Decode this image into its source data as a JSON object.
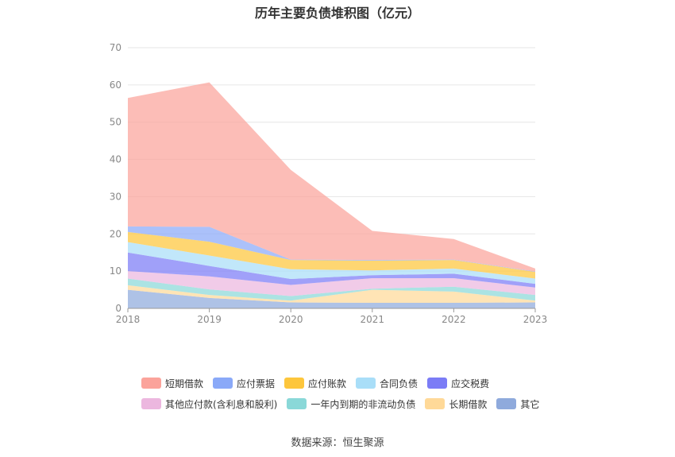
{
  "chart_data": {
    "type": "area",
    "stacked": true,
    "title": "历年主要负债堆积图（亿元）",
    "categories": [
      "2018",
      "2019",
      "2020",
      "2021",
      "2022",
      "2023"
    ],
    "ylim": [
      0,
      70
    ],
    "yticks": [
      "0",
      "10",
      "20",
      "30",
      "40",
      "50",
      "60",
      "70"
    ],
    "grid": true,
    "legend_position": "bottom",
    "series": [
      {
        "name": "其它",
        "color": "#8faadc",
        "values": [
          5.0,
          2.8,
          1.6,
          1.5,
          1.5,
          1.6
        ]
      },
      {
        "name": "长期借款",
        "color": "#ffd998",
        "values": [
          1.2,
          0.8,
          0.5,
          3.5,
          3.0,
          0.5
        ]
      },
      {
        "name": "一年内到期的非流动负债",
        "color": "#8ad8d8",
        "values": [
          1.8,
          1.5,
          1.2,
          0.3,
          1.3,
          1.5
        ]
      },
      {
        "name": "其他应付款(含利息和股利)",
        "color": "#ecb7df",
        "values": [
          2.0,
          3.5,
          3.0,
          2.8,
          2.3,
          2.0
        ]
      },
      {
        "name": "应交税费",
        "color": "#7b7cf6",
        "values": [
          5.0,
          2.8,
          1.6,
          0.8,
          1.2,
          1.0
        ]
      },
      {
        "name": "合同负债",
        "color": "#a9def8",
        "values": [
          2.8,
          2.8,
          2.6,
          1.3,
          1.4,
          1.4
        ]
      },
      {
        "name": "应付账款",
        "color": "#fdc63c",
        "values": [
          2.7,
          3.7,
          2.5,
          2.6,
          2.3,
          1.8
        ]
      },
      {
        "name": "应付票据",
        "color": "#8aa9f8",
        "values": [
          1.5,
          4.0,
          0.1,
          0.2,
          0.1,
          0.1
        ]
      },
      {
        "name": "短期借款",
        "color": "#fba39b",
        "values": [
          34.5,
          38.8,
          24.1,
          7.8,
          5.5,
          0.8
        ]
      }
    ]
  },
  "legend_rows": [
    [
      "短期借款",
      "应付票据",
      "应付账款",
      "合同负债",
      "应交税费"
    ],
    [
      "其他应付款(含利息和股利)",
      "一年内到期的非流动负债",
      "长期借款",
      "其它"
    ]
  ],
  "source": "数据来源：恒生聚源"
}
